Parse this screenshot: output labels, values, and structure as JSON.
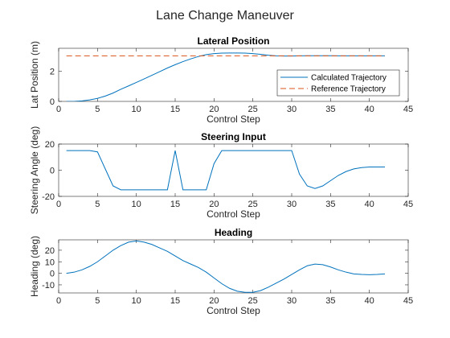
{
  "figure": {
    "title": "Lane Change Maneuver"
  },
  "chart_data": [
    {
      "type": "line",
      "title": "Lateral Position",
      "xlabel": "Control Step",
      "ylabel": "Lat Position (m)",
      "xlim": [
        0,
        45
      ],
      "ylim": [
        0,
        3.5
      ],
      "xticks": [
        0,
        5,
        10,
        15,
        20,
        25,
        30,
        35,
        40,
        45
      ],
      "yticks": [
        0,
        2
      ],
      "grid": false,
      "legend": "right",
      "series": [
        {
          "name": "Calculated Trajectory",
          "color": "#0072bd",
          "style": "solid",
          "x": [
            1,
            2,
            3,
            4,
            5,
            6,
            7,
            8,
            9,
            10,
            11,
            12,
            13,
            14,
            15,
            16,
            17,
            18,
            19,
            20,
            21,
            22,
            23,
            24,
            25,
            26,
            27,
            28,
            29,
            30,
            31,
            32,
            33,
            34,
            35,
            36,
            37,
            38,
            39,
            40,
            41,
            42
          ],
          "y": [
            0,
            0,
            0.03,
            0.1,
            0.2,
            0.35,
            0.55,
            0.8,
            1.02,
            1.25,
            1.48,
            1.72,
            1.96,
            2.2,
            2.42,
            2.62,
            2.8,
            2.96,
            3.08,
            3.15,
            3.18,
            3.19,
            3.19,
            3.18,
            3.15,
            3.1,
            3.04,
            3.0,
            2.99,
            2.99,
            3.0,
            3.01,
            3.01,
            3.01,
            3.01,
            3.0,
            3.0,
            3.0,
            3.0,
            3.0,
            3.0,
            3.0
          ]
        },
        {
          "name": "Reference Trajectory",
          "color": "#d95319",
          "style": "dashed",
          "x": [
            1,
            42
          ],
          "y": [
            3,
            3
          ]
        }
      ]
    },
    {
      "type": "line",
      "title": "Steering Input",
      "xlabel": "Control Step",
      "ylabel": "Steering Angle (deg)",
      "xlim": [
        0,
        45
      ],
      "ylim": [
        -20,
        20
      ],
      "xticks": [
        0,
        5,
        10,
        15,
        20,
        25,
        30,
        35,
        40,
        45
      ],
      "yticks": [
        -20,
        0,
        20
      ],
      "grid": false,
      "series": [
        {
          "name": "",
          "color": "#0072bd",
          "style": "solid",
          "x": [
            1,
            2,
            3,
            4,
            5,
            6,
            7,
            8,
            9,
            10,
            11,
            12,
            13,
            14,
            15,
            16,
            17,
            18,
            19,
            20,
            21,
            22,
            23,
            24,
            25,
            26,
            27,
            28,
            29,
            30,
            31,
            32,
            33,
            34,
            35,
            36,
            37,
            38,
            39,
            40,
            41,
            42
          ],
          "y": [
            15,
            15,
            15,
            15,
            14,
            1,
            -12,
            -15,
            -15,
            -15,
            -15,
            -15,
            -15,
            -15,
            15,
            -15,
            -15,
            -15,
            -15,
            5,
            15,
            15,
            15,
            15,
            15,
            15,
            15,
            15,
            15,
            15,
            -3,
            -12,
            -14,
            -12,
            -8,
            -4,
            -1,
            1,
            2,
            2.5,
            2.5,
            2.5
          ]
        }
      ]
    },
    {
      "type": "line",
      "title": "Heading",
      "xlabel": "Control Step",
      "ylabel": "Heading (deg)",
      "xlim": [
        0,
        45
      ],
      "ylim": [
        -17,
        29
      ],
      "xticks": [
        0,
        5,
        10,
        15,
        20,
        25,
        30,
        35,
        40,
        45
      ],
      "yticks": [
        -10,
        0,
        10,
        20
      ],
      "grid": false,
      "series": [
        {
          "name": "",
          "color": "#0072bd",
          "style": "solid",
          "x": [
            1,
            2,
            3,
            4,
            5,
            6,
            7,
            8,
            9,
            10,
            11,
            12,
            13,
            14,
            15,
            16,
            17,
            18,
            19,
            20,
            21,
            22,
            23,
            24,
            25,
            26,
            27,
            28,
            29,
            30,
            31,
            32,
            33,
            34,
            35,
            36,
            37,
            38,
            39,
            40,
            41,
            42
          ],
          "y": [
            0,
            1,
            3,
            6,
            10,
            15,
            20,
            24,
            27,
            28,
            27,
            25,
            22,
            19,
            15,
            11,
            8,
            5,
            1,
            -4,
            -9,
            -13,
            -15.5,
            -16.5,
            -16.5,
            -15,
            -12,
            -8.5,
            -5,
            -1,
            3,
            6.5,
            8,
            7.5,
            5.5,
            3,
            1,
            -0.5,
            -1,
            -1.2,
            -1,
            -0.5
          ]
        }
      ]
    }
  ]
}
